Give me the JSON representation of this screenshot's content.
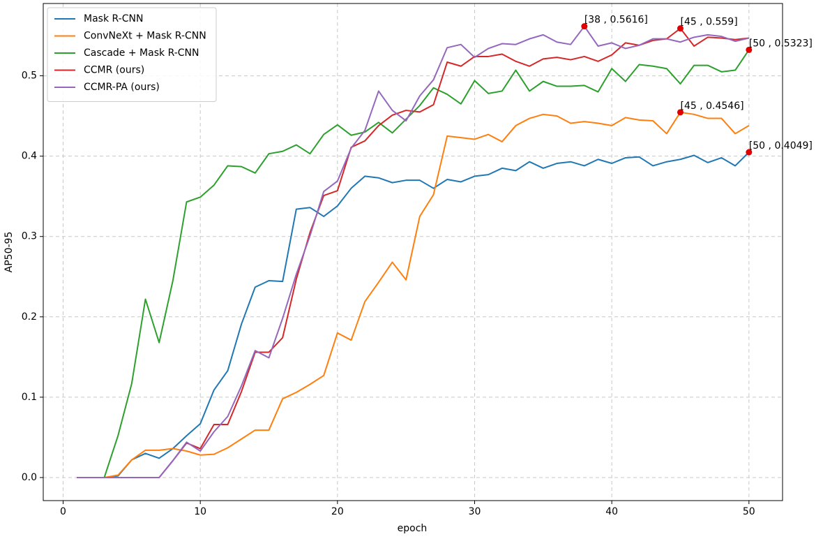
{
  "chart_data": {
    "type": "line",
    "xlabel": "epoch",
    "ylabel": "AP50-95",
    "x": [
      1,
      2,
      3,
      4,
      5,
      6,
      7,
      8,
      9,
      10,
      11,
      12,
      13,
      14,
      15,
      16,
      17,
      18,
      19,
      20,
      21,
      22,
      23,
      24,
      25,
      26,
      27,
      28,
      29,
      30,
      31,
      32,
      33,
      34,
      35,
      36,
      37,
      38,
      39,
      40,
      41,
      42,
      43,
      44,
      45,
      46,
      47,
      48,
      49,
      50
    ],
    "series": [
      {
        "name": "Mask R-CNN",
        "color": "#1f77b4",
        "values": [
          0,
          0,
          0,
          0.002,
          0.022,
          0.03,
          0.024,
          0.036,
          0.052,
          0.067,
          0.109,
          0.133,
          0.191,
          0.237,
          0.245,
          0.244,
          0.334,
          0.336,
          0.325,
          0.338,
          0.36,
          0.375,
          0.373,
          0.367,
          0.37,
          0.37,
          0.36,
          0.371,
          0.368,
          0.375,
          0.377,
          0.385,
          0.382,
          0.393,
          0.385,
          0.391,
          0.393,
          0.388,
          0.396,
          0.391,
          0.398,
          0.399,
          0.388,
          0.393,
          0.396,
          0.401,
          0.392,
          0.398,
          0.388,
          0.4049
        ]
      },
      {
        "name": "ConvNeXt + Mask R-CNN",
        "color": "#ff7f0e",
        "values": [
          0,
          0,
          0,
          0.003,
          0.022,
          0.034,
          0.034,
          0.036,
          0.033,
          0.028,
          0.029,
          0.037,
          0.048,
          0.059,
          0.059,
          0.098,
          0.106,
          0.116,
          0.127,
          0.18,
          0.171,
          0.219,
          0.243,
          0.268,
          0.246,
          0.325,
          0.352,
          0.425,
          0.423,
          0.421,
          0.427,
          0.418,
          0.438,
          0.447,
          0.452,
          0.45,
          0.441,
          0.443,
          0.441,
          0.438,
          0.448,
          0.445,
          0.444,
          0.428,
          0.4546,
          0.452,
          0.447,
          0.447,
          0.428,
          0.438
        ]
      },
      {
        "name": "Cascade + Mask R-CNN",
        "color": "#2ca02c",
        "values": [
          0,
          0,
          0,
          0.052,
          0.117,
          0.222,
          0.168,
          0.245,
          0.343,
          0.349,
          0.364,
          0.388,
          0.387,
          0.379,
          0.403,
          0.406,
          0.414,
          0.403,
          0.427,
          0.439,
          0.426,
          0.43,
          0.442,
          0.429,
          0.446,
          0.463,
          0.485,
          0.477,
          0.465,
          0.494,
          0.478,
          0.481,
          0.507,
          0.481,
          0.493,
          0.487,
          0.487,
          0.488,
          0.48,
          0.509,
          0.493,
          0.514,
          0.512,
          0.509,
          0.49,
          0.513,
          0.513,
          0.505,
          0.507,
          0.5323
        ]
      },
      {
        "name": "CCMR (ours)",
        "color": "#d62728",
        "values": [
          0,
          0,
          0,
          0,
          0,
          0,
          0,
          0.021,
          0.043,
          0.036,
          0.066,
          0.066,
          0.107,
          0.156,
          0.156,
          0.174,
          0.247,
          0.305,
          0.351,
          0.357,
          0.411,
          0.419,
          0.438,
          0.451,
          0.457,
          0.455,
          0.464,
          0.517,
          0.512,
          0.524,
          0.524,
          0.527,
          0.518,
          0.512,
          0.521,
          0.523,
          0.52,
          0.524,
          0.518,
          0.526,
          0.541,
          0.538,
          0.544,
          0.546,
          0.559,
          0.537,
          0.548,
          0.547,
          0.545,
          0.547
        ]
      },
      {
        "name": "CCMR-PA (ours)",
        "color": "#9467bd",
        "values": [
          0,
          0,
          0,
          0,
          0,
          0,
          0,
          0.021,
          0.044,
          0.033,
          0.057,
          0.076,
          0.114,
          0.158,
          0.149,
          0.198,
          0.253,
          0.301,
          0.356,
          0.369,
          0.41,
          0.432,
          0.481,
          0.457,
          0.444,
          0.475,
          0.495,
          0.535,
          0.539,
          0.523,
          0.534,
          0.54,
          0.539,
          0.546,
          0.551,
          0.542,
          0.539,
          0.5616,
          0.537,
          0.541,
          0.534,
          0.538,
          0.546,
          0.546,
          0.542,
          0.548,
          0.551,
          0.549,
          0.543,
          0.547
        ]
      }
    ],
    "annotations": [
      {
        "x": 38,
        "y": 0.5616,
        "label": "[38 , 0.5616]"
      },
      {
        "x": 45,
        "y": 0.559,
        "label": "[45 , 0.559]"
      },
      {
        "x": 50,
        "y": 0.5323,
        "label": "[50 , 0.5323]"
      },
      {
        "x": 45,
        "y": 0.4546,
        "label": "[45 , 0.4546]"
      },
      {
        "x": 50,
        "y": 0.4049,
        "label": "[50 , 0.4049]"
      }
    ],
    "marker_color": "#e00000",
    "xlim": [
      -1.45,
      52.45
    ],
    "ylim": [
      -0.0287,
      0.59
    ],
    "xticks": [
      0,
      10,
      20,
      30,
      40,
      50
    ],
    "yticks": [
      {
        "value": 0,
        "label": "0.0"
      },
      0.1,
      0.2,
      0.3,
      0.4,
      0.5
    ],
    "grid": true,
    "legend": "upper-left"
  }
}
